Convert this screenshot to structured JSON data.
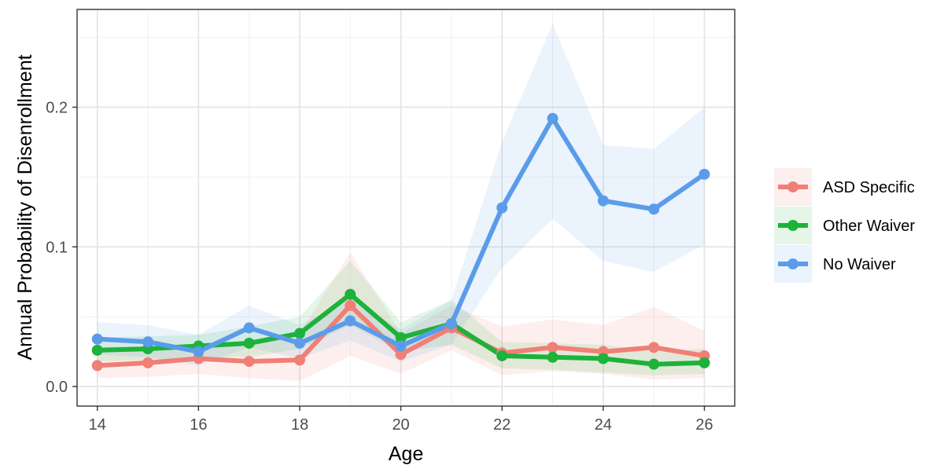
{
  "chart_data": {
    "type": "line",
    "xlabel": "Age",
    "ylabel": "Annual Probability of Disenrollment",
    "x": [
      14,
      15,
      16,
      17,
      18,
      19,
      20,
      21,
      22,
      23,
      24,
      25,
      26
    ],
    "xlim": [
      13.6,
      26.6
    ],
    "ylim": [
      -0.014,
      0.27
    ],
    "x_ticks": [
      "14",
      "16",
      "18",
      "20",
      "22",
      "24",
      "26"
    ],
    "x_tick_values": [
      14,
      16,
      18,
      20,
      22,
      24,
      26
    ],
    "y_ticks": [
      "0.0",
      "0.1",
      "0.2"
    ],
    "y_tick_values": [
      0.0,
      0.1,
      0.2
    ],
    "grid": true,
    "legend_position": "right",
    "series": [
      {
        "name": "ASD Specific",
        "color": "#F07F76",
        "values": [
          0.015,
          0.017,
          0.02,
          0.018,
          0.019,
          0.058,
          0.023,
          0.042,
          0.024,
          0.028,
          0.025,
          0.028,
          0.022
        ],
        "lower": [
          0.006,
          0.007,
          0.009,
          0.006,
          0.004,
          0.022,
          0.009,
          0.026,
          0.008,
          0.011,
          0.009,
          0.005,
          0.006
        ],
        "upper": [
          0.028,
          0.029,
          0.031,
          0.032,
          0.038,
          0.096,
          0.038,
          0.058,
          0.043,
          0.048,
          0.044,
          0.057,
          0.04
        ]
      },
      {
        "name": "Other Waiver",
        "color": "#1DB23A",
        "values": [
          0.026,
          0.027,
          0.029,
          0.031,
          0.038,
          0.066,
          0.035,
          0.045,
          0.022,
          0.021,
          0.02,
          0.016,
          0.017
        ],
        "lower": [
          0.018,
          0.019,
          0.021,
          0.021,
          0.027,
          0.044,
          0.025,
          0.03,
          0.013,
          0.012,
          0.01,
          0.008,
          0.009
        ],
        "upper": [
          0.035,
          0.036,
          0.037,
          0.043,
          0.05,
          0.09,
          0.046,
          0.062,
          0.032,
          0.031,
          0.03,
          0.025,
          0.027
        ]
      },
      {
        "name": "No Waiver",
        "color": "#5B9CEA",
        "values": [
          0.034,
          0.032,
          0.025,
          0.042,
          0.031,
          0.047,
          0.029,
          0.045,
          0.128,
          0.192,
          0.133,
          0.127,
          0.152
        ],
        "lower": [
          0.023,
          0.021,
          0.015,
          0.028,
          0.02,
          0.033,
          0.018,
          0.03,
          0.085,
          0.12,
          0.09,
          0.082,
          0.102
        ],
        "upper": [
          0.046,
          0.044,
          0.037,
          0.058,
          0.044,
          0.063,
          0.041,
          0.062,
          0.175,
          0.26,
          0.173,
          0.17,
          0.2
        ]
      }
    ]
  }
}
